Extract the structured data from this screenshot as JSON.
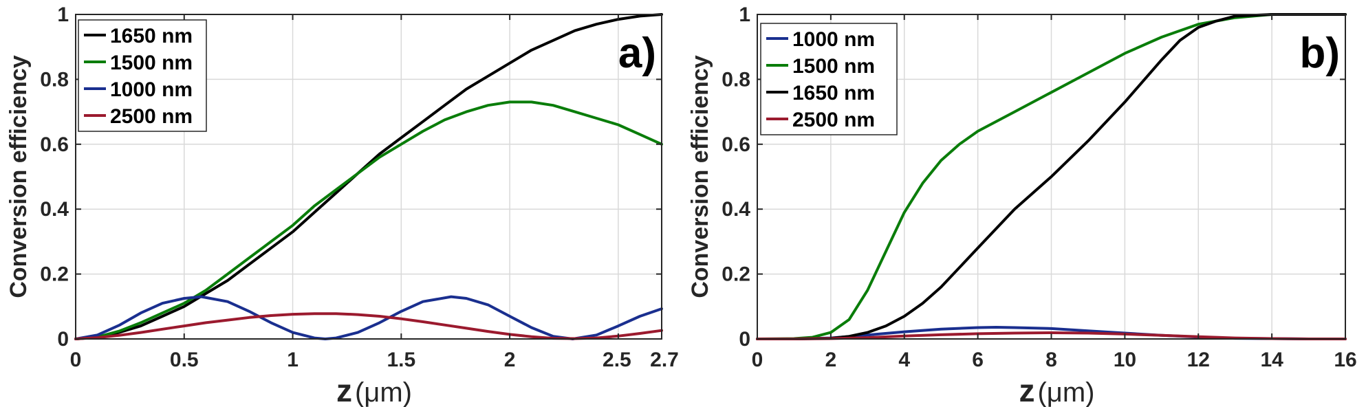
{
  "chart_data": [
    {
      "type": "line",
      "panel_label": "a)",
      "xlabel_main": "z",
      "xlabel_unit": "(μm)",
      "ylabel": "Conversion efficiency",
      "xlim": [
        0,
        2.7
      ],
      "ylim": [
        0,
        1
      ],
      "xticks": [
        0,
        0.5,
        1,
        1.5,
        2,
        2.5,
        2.7
      ],
      "xtick_labels": [
        "0",
        "0.5",
        "1",
        "1.5",
        "2",
        "2.5",
        "2.7"
      ],
      "yticks": [
        0,
        0.2,
        0.4,
        0.6,
        0.8,
        1
      ],
      "ytick_labels": [
        "0",
        "0.2",
        "0.4",
        "0.6",
        "0.8",
        "1"
      ],
      "grid": true,
      "legend_position": "top-left",
      "series": [
        {
          "name": "1650 nm",
          "color": "#000000",
          "x": [
            0,
            0.1,
            0.2,
            0.3,
            0.4,
            0.5,
            0.6,
            0.7,
            0.8,
            0.9,
            1.0,
            1.1,
            1.2,
            1.3,
            1.4,
            1.5,
            1.6,
            1.7,
            1.8,
            1.9,
            2.0,
            2.1,
            2.2,
            2.3,
            2.4,
            2.5,
            2.6,
            2.7
          ],
          "y": [
            0,
            0.005,
            0.02,
            0.04,
            0.07,
            0.1,
            0.14,
            0.18,
            0.23,
            0.28,
            0.33,
            0.39,
            0.45,
            0.51,
            0.57,
            0.62,
            0.67,
            0.72,
            0.77,
            0.81,
            0.85,
            0.89,
            0.92,
            0.95,
            0.97,
            0.985,
            0.995,
            1.0
          ]
        },
        {
          "name": "1500 nm",
          "color": "#0a7d0a",
          "x": [
            0,
            0.1,
            0.2,
            0.3,
            0.4,
            0.5,
            0.6,
            0.7,
            0.8,
            0.9,
            1.0,
            1.1,
            1.2,
            1.3,
            1.4,
            1.5,
            1.6,
            1.7,
            1.8,
            1.9,
            2.0,
            2.1,
            2.2,
            2.3,
            2.4,
            2.5,
            2.6,
            2.7
          ],
          "y": [
            0,
            0.006,
            0.024,
            0.05,
            0.08,
            0.11,
            0.15,
            0.2,
            0.25,
            0.3,
            0.35,
            0.41,
            0.46,
            0.51,
            0.56,
            0.6,
            0.64,
            0.675,
            0.7,
            0.72,
            0.73,
            0.73,
            0.72,
            0.7,
            0.68,
            0.66,
            0.63,
            0.6
          ]
        },
        {
          "name": "1000 nm",
          "color": "#1a2f8f",
          "x": [
            0,
            0.1,
            0.2,
            0.3,
            0.4,
            0.5,
            0.58,
            0.7,
            0.8,
            0.9,
            1.0,
            1.1,
            1.15,
            1.2,
            1.3,
            1.4,
            1.5,
            1.6,
            1.73,
            1.8,
            1.9,
            2.0,
            2.1,
            2.2,
            2.29,
            2.4,
            2.5,
            2.6,
            2.7
          ],
          "y": [
            0,
            0.012,
            0.042,
            0.08,
            0.11,
            0.125,
            0.13,
            0.115,
            0.085,
            0.05,
            0.02,
            0.003,
            0,
            0.003,
            0.02,
            0.05,
            0.085,
            0.115,
            0.13,
            0.125,
            0.105,
            0.07,
            0.035,
            0.008,
            0,
            0.012,
            0.04,
            0.07,
            0.093
          ]
        },
        {
          "name": "2500 nm",
          "color": "#9b1a2e",
          "x": [
            0,
            0.1,
            0.2,
            0.3,
            0.4,
            0.5,
            0.6,
            0.7,
            0.8,
            0.9,
            1.0,
            1.1,
            1.2,
            1.3,
            1.4,
            1.5,
            1.6,
            1.7,
            1.8,
            1.9,
            2.0,
            2.1,
            2.2,
            2.3,
            2.4,
            2.5,
            2.6,
            2.7
          ],
          "y": [
            0,
            0.004,
            0.011,
            0.02,
            0.03,
            0.04,
            0.05,
            0.058,
            0.066,
            0.072,
            0.076,
            0.078,
            0.078,
            0.075,
            0.07,
            0.062,
            0.053,
            0.043,
            0.033,
            0.023,
            0.014,
            0.007,
            0.002,
            0.001,
            0.003,
            0.009,
            0.017,
            0.026
          ]
        }
      ]
    },
    {
      "type": "line",
      "panel_label": "b)",
      "xlabel_main": "z",
      "xlabel_unit": "(μm)",
      "ylabel": "Conversion efficiency",
      "xlim": [
        0,
        16
      ],
      "ylim": [
        0,
        1
      ],
      "xticks": [
        0,
        2,
        4,
        6,
        8,
        10,
        12,
        14,
        16
      ],
      "xtick_labels": [
        "0",
        "2",
        "4",
        "6",
        "8",
        "10",
        "12",
        "14",
        "16"
      ],
      "yticks": [
        0,
        0.2,
        0.4,
        0.6,
        0.8,
        1
      ],
      "ytick_labels": [
        "0",
        "0.2",
        "0.4",
        "0.6",
        "0.8",
        "1"
      ],
      "grid": true,
      "legend_position": "top-left",
      "series": [
        {
          "name": "1000 nm",
          "color": "#1a2f8f",
          "x": [
            0,
            1,
            2,
            3,
            4,
            5,
            6,
            6.5,
            7,
            8,
            9,
            10,
            11,
            12,
            13,
            14,
            15,
            16
          ],
          "y": [
            0,
            0,
            0.003,
            0.012,
            0.022,
            0.03,
            0.035,
            0.036,
            0.035,
            0.032,
            0.025,
            0.018,
            0.011,
            0.006,
            0.002,
            0.001,
            0,
            0
          ]
        },
        {
          "name": "1500 nm",
          "color": "#0a7d0a",
          "x": [
            0,
            1,
            1.5,
            2,
            2.5,
            3,
            3.5,
            4,
            4.5,
            5,
            5.5,
            6,
            7,
            8,
            9,
            10,
            11,
            12,
            13,
            14,
            15,
            16
          ],
          "y": [
            0,
            0.001,
            0.005,
            0.02,
            0.06,
            0.15,
            0.27,
            0.39,
            0.48,
            0.55,
            0.6,
            0.64,
            0.7,
            0.76,
            0.82,
            0.88,
            0.93,
            0.97,
            0.99,
            1.0,
            1.0,
            1.0
          ]
        },
        {
          "name": "1650 nm",
          "color": "#000000",
          "x": [
            0,
            1,
            2,
            2.5,
            3,
            3.5,
            4,
            4.5,
            5,
            6,
            7,
            8,
            9,
            10,
            11,
            11.5,
            12,
            12.5,
            13,
            14,
            15,
            16
          ],
          "y": [
            0,
            0,
            0.002,
            0.008,
            0.02,
            0.04,
            0.07,
            0.11,
            0.16,
            0.28,
            0.4,
            0.5,
            0.61,
            0.73,
            0.86,
            0.92,
            0.96,
            0.98,
            0.995,
            1.0,
            1.0,
            1.0
          ]
        },
        {
          "name": "2500 nm",
          "color": "#9b1a2e",
          "x": [
            0,
            1,
            2,
            3,
            4,
            5,
            6,
            7,
            8,
            9,
            10,
            11,
            12,
            13,
            14,
            15,
            16
          ],
          "y": [
            0,
            0,
            0.001,
            0.004,
            0.009,
            0.013,
            0.016,
            0.018,
            0.019,
            0.018,
            0.015,
            0.011,
            0.007,
            0.003,
            0.001,
            0,
            0
          ]
        }
      ]
    }
  ]
}
